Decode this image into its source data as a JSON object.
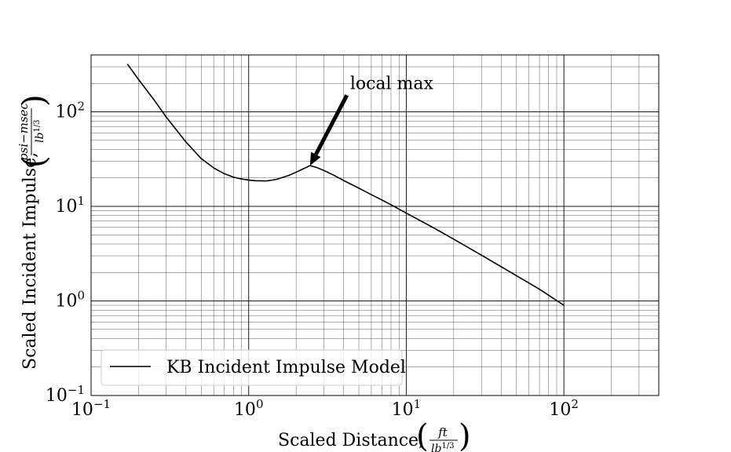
{
  "chart_data": {
    "type": "line",
    "title": "",
    "xscale": "log",
    "yscale": "log",
    "xlim": [
      0.1,
      400
    ],
    "ylim": [
      0.1,
      400
    ],
    "xlabel": {
      "text": "Scaled Distance,",
      "unit_numerator": "ft",
      "unit_denominator": "lb",
      "unit_denominator_exponent": "1/3"
    },
    "ylabel": {
      "text": "Scaled Incident Impulse,",
      "unit_numerator": "psi−msec",
      "unit_denominator": "lb",
      "unit_denominator_exponent": "1/3"
    },
    "x_ticks": [
      {
        "value": 0.1,
        "base": "10",
        "exp": "−1"
      },
      {
        "value": 1,
        "base": "10",
        "exp": "0"
      },
      {
        "value": 10,
        "base": "10",
        "exp": "1"
      },
      {
        "value": 100,
        "base": "10",
        "exp": "2"
      }
    ],
    "y_ticks": [
      {
        "value": 0.1,
        "base": "10",
        "exp": "−1"
      },
      {
        "value": 1,
        "base": "10",
        "exp": "0"
      },
      {
        "value": 10,
        "base": "10",
        "exp": "1"
      },
      {
        "value": 100,
        "base": "10",
        "exp": "2"
      }
    ],
    "grid": "major and minor",
    "legend": {
      "position": "lower-left",
      "entries": [
        "KB Incident Impulse Model"
      ]
    },
    "annotations": [
      {
        "text": "local max",
        "xy": [
          2.45,
          27
        ],
        "xytext": [
          4.2,
          150
        ],
        "arrow": true
      }
    ],
    "series": [
      {
        "name": "KB Incident Impulse Model",
        "color": "#000000",
        "x": [
          0.17,
          0.2,
          0.25,
          0.3,
          0.4,
          0.5,
          0.6,
          0.7,
          0.8,
          0.9,
          1.0,
          1.1,
          1.3,
          1.5,
          1.8,
          2.0,
          2.2,
          2.45,
          2.7,
          3.0,
          3.5,
          4.0,
          5.0,
          6.0,
          7.0,
          8.0,
          10,
          15,
          20,
          30,
          50,
          70,
          100
        ],
        "y": [
          320,
          220,
          135,
          88,
          48,
          32,
          25.5,
          22.2,
          20.4,
          19.5,
          19.0,
          18.7,
          18.6,
          19.3,
          21.3,
          23.0,
          24.8,
          27.0,
          25.8,
          24.0,
          21.2,
          18.8,
          15.6,
          13.3,
          11.7,
          10.4,
          8.5,
          5.9,
          4.5,
          3.05,
          1.85,
          1.33,
          0.9
        ]
      }
    ]
  }
}
